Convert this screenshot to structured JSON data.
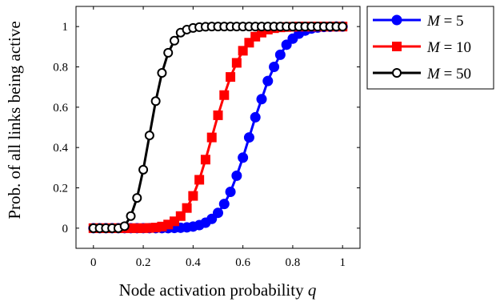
{
  "chart_data": {
    "type": "line",
    "xlabel": "Node activation probability q",
    "xlabel_main": "Node activation probability ",
    "xlabel_var": "q",
    "ylabel": "Prob. of all links being active",
    "xlim": [
      -0.07,
      1.07
    ],
    "ylim": [
      -0.1,
      1.1
    ],
    "x_ticks": [
      0,
      0.2,
      0.4,
      0.6,
      0.8,
      1
    ],
    "x_tick_labels": [
      "0",
      "0.2",
      "0.4",
      "0.6",
      "0.8",
      "1"
    ],
    "y_ticks": [
      0,
      0.2,
      0.4,
      0.6,
      0.8,
      1
    ],
    "y_tick_labels": [
      "0",
      "0.2",
      "0.4",
      "0.6",
      "0.8",
      "1"
    ],
    "grid": false,
    "legend_position": "outside-right-top",
    "x": [
      0,
      0.025,
      0.05,
      0.075,
      0.1,
      0.125,
      0.15,
      0.175,
      0.2,
      0.225,
      0.25,
      0.275,
      0.3,
      0.325,
      0.35,
      0.375,
      0.4,
      0.425,
      0.45,
      0.475,
      0.5,
      0.525,
      0.55,
      0.575,
      0.6,
      0.625,
      0.65,
      0.675,
      0.7,
      0.725,
      0.75,
      0.775,
      0.8,
      0.825,
      0.85,
      0.875,
      0.9,
      0.925,
      0.95,
      0.975,
      1
    ],
    "series": [
      {
        "name": "M = 5",
        "legend_var": "M",
        "legend_rest": " = 5",
        "color": "#0000ff",
        "marker": "circle-filled",
        "values": [
          0,
          0,
          0,
          0,
          0,
          0,
          0,
          0,
          0,
          0,
          0,
          0,
          0,
          0.001,
          0.002,
          0.004,
          0.008,
          0.015,
          0.027,
          0.046,
          0.076,
          0.12,
          0.18,
          0.26,
          0.35,
          0.45,
          0.55,
          0.64,
          0.73,
          0.8,
          0.86,
          0.91,
          0.94,
          0.965,
          0.98,
          0.99,
          0.995,
          0.998,
          0.999,
          1,
          1
        ]
      },
      {
        "name": "M = 10",
        "legend_var": "M",
        "legend_rest": " = 10",
        "color": "#ff0000",
        "marker": "square-filled",
        "values": [
          0,
          0,
          0,
          0,
          0,
          0,
          0,
          0,
          0,
          0.001,
          0.003,
          0.008,
          0.018,
          0.034,
          0.06,
          0.1,
          0.16,
          0.24,
          0.34,
          0.45,
          0.56,
          0.66,
          0.75,
          0.82,
          0.88,
          0.92,
          0.95,
          0.97,
          0.985,
          0.992,
          0.996,
          0.998,
          0.999,
          1,
          1,
          1,
          1,
          1,
          1,
          1,
          1
        ]
      },
      {
        "name": "M = 50",
        "legend_var": "M",
        "legend_rest": " = 50",
        "color": "#000000",
        "marker": "circle-open",
        "values": [
          0,
          0,
          0,
          0,
          0,
          0.01,
          0.06,
          0.15,
          0.29,
          0.46,
          0.63,
          0.77,
          0.87,
          0.93,
          0.97,
          0.985,
          0.993,
          0.997,
          0.999,
          1,
          1,
          1,
          1,
          1,
          1,
          1,
          1,
          1,
          1,
          1,
          1,
          1,
          1,
          1,
          1,
          1,
          1,
          1,
          1,
          1,
          1
        ]
      }
    ]
  }
}
